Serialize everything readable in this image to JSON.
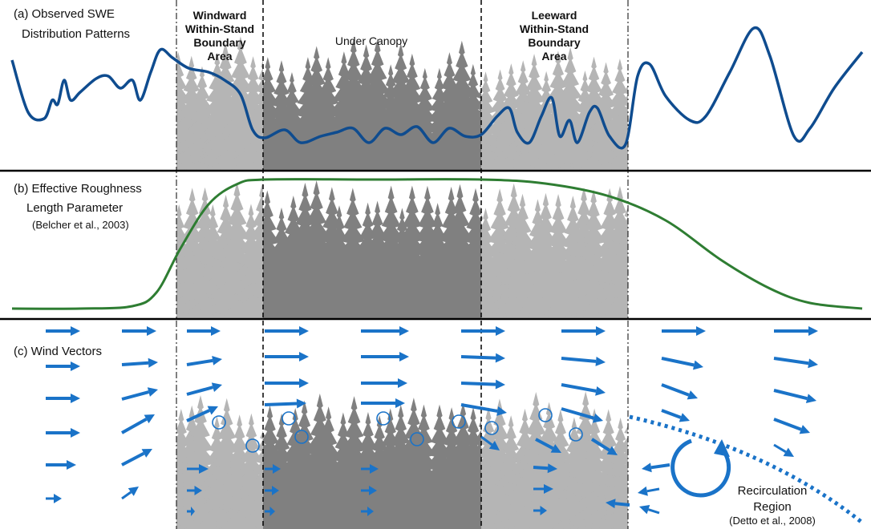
{
  "panel_a": {
    "title_lines": [
      "(a) Observed SWE",
      "Distribution Patterns"
    ]
  },
  "zones": {
    "windward": [
      "Windward",
      "Within-Stand",
      "Boundary",
      "Area"
    ],
    "under_canopy": "Under Canopy",
    "leeward": [
      "Leeward",
      "Within-Stand",
      "Boundary",
      "Area"
    ]
  },
  "panel_b": {
    "title_lines": [
      "(b) Effective Roughness",
      "Length Parameter"
    ],
    "citation": "(Belcher et al., 2003)"
  },
  "panel_c": {
    "title": "(c) Wind Vectors",
    "recirculation": {
      "lines": [
        "Recirculation",
        "Region"
      ],
      "citation": "(Detto et al., 2008)"
    }
  }
}
